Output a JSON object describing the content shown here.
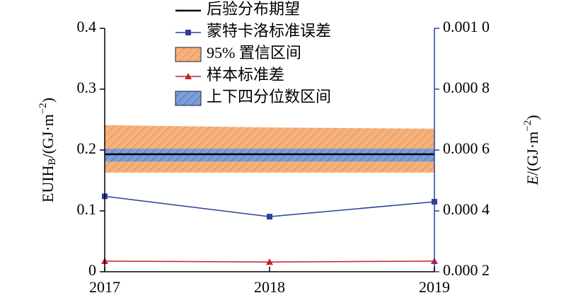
{
  "chart_data": {
    "type": "line",
    "x": [
      2017,
      2018,
      2019
    ],
    "xlim": [
      2017,
      2019
    ],
    "xticks": [
      2017,
      2018,
      2019
    ],
    "ylim": [
      0,
      0.4
    ],
    "yticks": [
      0,
      0.1,
      0.2,
      0.3,
      0.4
    ],
    "y2lim": [
      0.0002,
      0.001
    ],
    "y2ticks": [
      {
        "value": 0.0002,
        "label": "0.000 2"
      },
      {
        "value": 0.0004,
        "label": "0.000 4"
      },
      {
        "value": 0.0006,
        "label": "0.000 6"
      },
      {
        "value": 0.0008,
        "label": "0.000 8"
      },
      {
        "value": 0.001,
        "label": "0.001 0"
      }
    ],
    "ylabel": {
      "main": "EUIH",
      "sub": "B",
      "mid": "/(GJ·m",
      "sup": "−2",
      "end": ")"
    },
    "y2label": {
      "main": "E",
      "mid": "/(GJ·m",
      "sup": "−2",
      "end": ")"
    },
    "axis_color": "#2b3f9b",
    "series": [
      {
        "name": "后验分布期望",
        "kind": "line",
        "color": "#000000",
        "values": [
          0.193,
          0.193,
          0.193
        ]
      },
      {
        "name": "蒙特卡洛标准误差",
        "kind": "line",
        "marker": "square",
        "axis": "y2",
        "color": "#2b3f9b",
        "values": [
          0.000448,
          0.000381,
          0.00043
        ]
      },
      {
        "name": "95% 置信区间",
        "kind": "band",
        "color": "#f5b27c",
        "hatch": "#e07a3a",
        "upper": [
          0.241,
          0.237,
          0.235
        ],
        "lower": [
          0.163,
          0.163,
          0.163
        ]
      },
      {
        "name": "样本标准差",
        "kind": "line",
        "marker": "triangle",
        "color": "#c8202a",
        "values": [
          0.0175,
          0.016,
          0.0175
        ]
      },
      {
        "name": "上下四分位数区间",
        "kind": "band",
        "color": "#7b9fd9",
        "hatch": "#3b5cae",
        "upper": [
          0.202,
          0.202,
          0.202
        ],
        "lower": [
          0.181,
          0.181,
          0.181
        ]
      }
    ]
  }
}
